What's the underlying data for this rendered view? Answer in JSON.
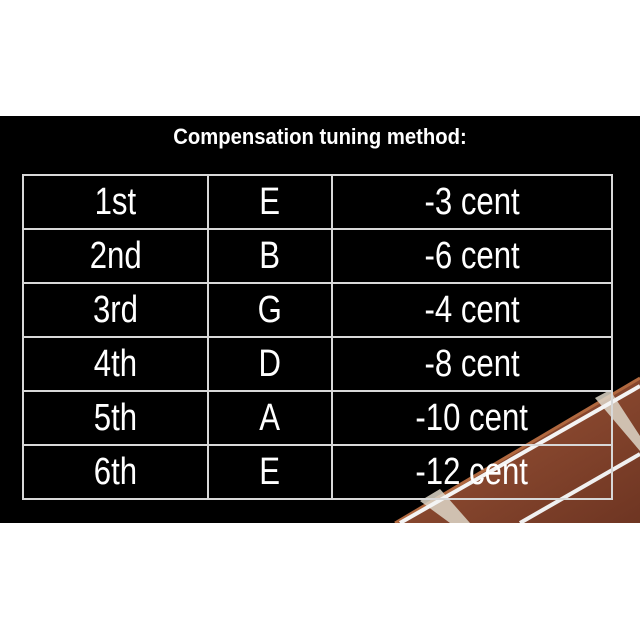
{
  "title": "Compensation tuning method:",
  "rows": [
    {
      "string": "1st",
      "note": "E",
      "offset": "-3 cent"
    },
    {
      "string": "2nd",
      "note": "B",
      "offset": "-6 cent"
    },
    {
      "string": "3rd",
      "note": "G",
      "offset": "-4 cent"
    },
    {
      "string": "4th",
      "note": "D",
      "offset": "-8 cent"
    },
    {
      "string": "5th",
      "note": "A",
      "offset": "-10 cent"
    },
    {
      "string": "6th",
      "note": "E",
      "offset": "-12 cent"
    }
  ],
  "colors": {
    "background": "#000000",
    "text": "#ffffff",
    "grid": "#d8d8d8",
    "fretboard": "#8a4a30"
  }
}
